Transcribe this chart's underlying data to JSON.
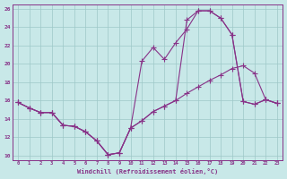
{
  "bg_color": "#c8e8e8",
  "grid_color": "#9ec8c8",
  "line_color": "#883388",
  "xlabel": "Windchill (Refroidissement éolien,°C)",
  "xlim": [
    -0.5,
    23.5
  ],
  "ylim": [
    9.5,
    26.5
  ],
  "xticks": [
    0,
    1,
    2,
    3,
    4,
    5,
    6,
    7,
    8,
    9,
    10,
    11,
    12,
    13,
    14,
    15,
    16,
    17,
    18,
    19,
    20,
    21,
    22,
    23
  ],
  "yticks": [
    10,
    12,
    14,
    16,
    18,
    20,
    22,
    24,
    26
  ],
  "line1_x": [
    0,
    1,
    2,
    3,
    4,
    5,
    6,
    7,
    8,
    9,
    10,
    11,
    12,
    13,
    14,
    15,
    16,
    17,
    18,
    19,
    20,
    21,
    22,
    23
  ],
  "line1_y": [
    15.8,
    15.2,
    14.7,
    14.7,
    13.3,
    13.2,
    12.6,
    11.6,
    10.1,
    10.3,
    13.0,
    20.3,
    21.8,
    20.5,
    22.3,
    23.8,
    25.8,
    25.8,
    25.0,
    23.2,
    15.9,
    15.6,
    16.1,
    15.7
  ],
  "line2_x": [
    0,
    1,
    2,
    3,
    4,
    5,
    6,
    7,
    8,
    9,
    10,
    11,
    12,
    13,
    14,
    15,
    16,
    17,
    18,
    19,
    20,
    21,
    22,
    23
  ],
  "line2_y": [
    15.8,
    15.2,
    14.7,
    14.7,
    13.3,
    13.2,
    12.6,
    11.6,
    10.1,
    10.3,
    13.0,
    13.8,
    14.8,
    15.4,
    16.0,
    16.8,
    17.5,
    18.2,
    18.8,
    19.5,
    19.8,
    19.0,
    16.1,
    15.7
  ],
  "line3_x": [
    0,
    1,
    2,
    3,
    4,
    5,
    6,
    7,
    8,
    9,
    10,
    11,
    12,
    13,
    14,
    15,
    16,
    17,
    18,
    19,
    20,
    21,
    22,
    23
  ],
  "line3_y": [
    15.8,
    15.2,
    14.7,
    14.7,
    13.3,
    13.2,
    12.6,
    11.6,
    10.1,
    10.3,
    13.0,
    13.8,
    14.8,
    15.4,
    16.0,
    24.8,
    25.8,
    25.8,
    25.0,
    23.2,
    15.9,
    15.6,
    16.1,
    15.7
  ]
}
